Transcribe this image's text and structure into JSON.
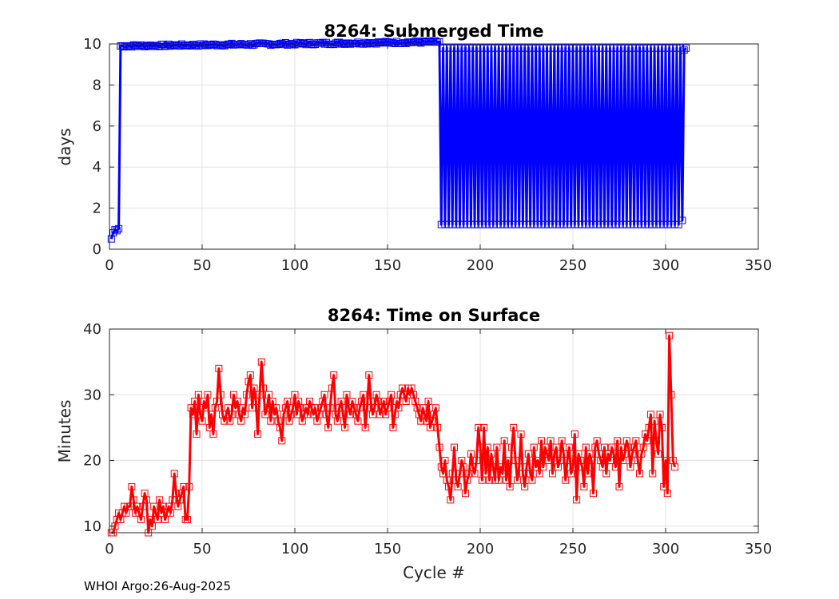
{
  "footer": "WHOI Argo:26-Aug-2025",
  "colors": {
    "submerged": "#0000ff",
    "surface": "#ff0000",
    "grid": "#e3e3e3",
    "axis": "#262626"
  },
  "chart_data": [
    {
      "type": "line",
      "title": "8264: Submerged Time",
      "xlabel": "",
      "ylabel": "days",
      "xlim": [
        0,
        350
      ],
      "ylim": [
        0,
        10
      ],
      "xticks": [
        0,
        50,
        100,
        150,
        200,
        250,
        300,
        350
      ],
      "yticks": [
        0,
        2,
        4,
        6,
        8,
        10
      ],
      "grid": true,
      "marker": "square",
      "series": [
        {
          "name": "Submerged Time",
          "color": "#0000ff",
          "segments": [
            {
              "x_start": 1,
              "x_end": 5,
              "points": [
                0.5,
                0.8,
                0.95,
                0.9,
                1.0
              ]
            },
            {
              "x_start": 6,
              "x_end": 178,
              "start": 9.9,
              "end": 10.1,
              "jitter": 0.06
            },
            {
              "x_start": 179,
              "x_end": 308,
              "alternating": [
                1.2,
                9.8
              ]
            },
            {
              "x_start": 309,
              "x_end": 311,
              "points": [
                1.4,
                9.7,
                9.8
              ]
            }
          ]
        }
      ]
    },
    {
      "type": "line",
      "title": "8264: Time on Surface",
      "xlabel": "Cycle #",
      "ylabel": "Minutes",
      "xlim": [
        0,
        350
      ],
      "ylim": [
        9,
        40
      ],
      "xticks": [
        0,
        50,
        100,
        150,
        200,
        250,
        300,
        350
      ],
      "yticks": [
        10,
        20,
        30,
        40
      ],
      "grid": true,
      "marker": "square",
      "series": [
        {
          "name": "Time on Surface",
          "color": "#ff0000",
          "values": [
            9,
            9,
            10,
            11,
            12,
            11,
            12,
            13,
            12,
            13,
            13,
            16,
            14,
            12,
            13,
            12,
            11,
            13,
            15,
            14,
            9,
            11,
            10,
            13,
            12,
            11,
            14,
            12,
            13,
            11,
            12,
            13,
            12,
            14,
            18,
            15,
            13,
            14,
            15,
            16,
            11,
            11,
            16,
            28,
            27,
            29,
            24,
            30,
            27,
            26,
            29,
            28,
            30,
            25,
            27,
            24,
            28,
            29,
            34,
            30,
            27,
            26,
            27,
            28,
            26,
            27,
            30,
            28,
            29,
            27,
            26,
            28,
            27,
            30,
            32,
            33,
            28,
            31,
            29,
            24,
            30,
            35,
            31,
            27,
            28,
            30,
            26,
            29,
            27,
            28,
            26,
            25,
            23,
            27,
            28,
            29,
            26,
            27,
            28,
            30,
            27,
            29,
            28,
            26,
            27,
            28,
            27,
            29,
            28,
            27,
            28,
            26,
            27,
            28,
            29,
            30,
            27,
            25,
            28,
            31,
            33,
            27,
            26,
            28,
            29,
            27,
            25,
            30,
            28,
            27,
            29,
            28,
            27,
            26,
            28,
            29,
            30,
            25,
            28,
            33,
            29,
            27,
            28,
            30,
            29,
            27,
            28,
            29,
            27,
            28,
            29,
            30,
            25,
            27,
            29,
            28,
            30,
            31,
            30,
            29,
            31,
            30,
            31,
            30,
            29,
            28,
            27,
            26,
            28,
            27,
            26,
            29,
            25,
            26,
            27,
            28,
            25,
            22,
            19,
            18,
            20,
            17,
            16,
            14,
            18,
            22,
            17,
            16,
            18,
            20,
            19,
            15,
            17,
            18,
            21,
            19,
            18,
            20,
            25,
            22,
            17,
            25,
            18,
            22,
            17,
            21,
            19,
            17,
            22,
            17,
            19,
            18,
            23,
            17,
            20,
            16,
            22,
            25,
            20,
            17,
            19,
            24,
            18,
            16,
            19,
            21,
            18,
            17,
            22,
            19,
            20,
            18,
            23,
            19,
            22,
            21,
            20,
            23,
            18,
            21,
            22,
            19,
            20,
            23,
            21,
            17,
            20,
            22,
            18,
            19,
            24,
            14,
            21,
            20,
            19,
            16,
            22,
            18,
            21,
            20,
            15,
            22,
            23,
            21,
            20,
            19,
            22,
            18,
            21,
            20,
            22,
            21,
            19,
            23,
            16,
            22,
            20,
            21,
            23,
            22,
            19,
            21,
            22,
            23,
            20,
            18,
            21,
            22,
            24,
            23,
            25,
            27,
            18,
            26,
            23,
            21,
            27,
            25,
            16,
            20,
            15,
            39,
            30,
            20,
            19
          ]
        }
      ]
    }
  ]
}
